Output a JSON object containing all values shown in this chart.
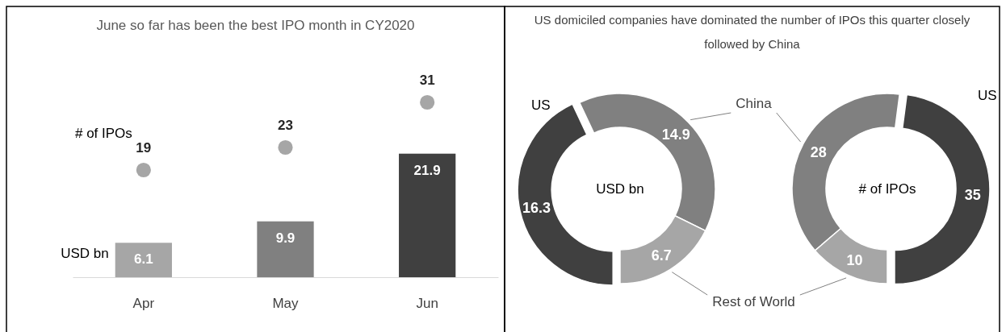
{
  "chart_data": [
    {
      "type": "bar",
      "title": "June so far has been the best IPO month in CY2020",
      "categories": [
        "Apr",
        "May",
        "Jun"
      ],
      "tick_labels": "x",
      "data_labels": true,
      "marker": "circle",
      "series": [
        {
          "name": "USD bn",
          "type": "bar",
          "values": [
            6.1,
            9.9,
            21.9
          ],
          "colors": [
            "#a6a6a6",
            "#808080",
            "#404040"
          ]
        },
        {
          "name": "# of IPOs",
          "type": "scatter",
          "values": [
            19,
            23,
            31
          ],
          "color": "#a6a6a6"
        }
      ]
    },
    {
      "type": "donut",
      "title": "US domiciled companies have dominated the number of IPOs this quarter closely followed by China",
      "categories": [
        "US",
        "China",
        "Rest of World"
      ],
      "colors": [
        "#404040",
        "#808080",
        "#a6a6a6"
      ],
      "data_labels": true,
      "series": [
        {
          "name": "USD bn",
          "values": [
            16.3,
            14.9,
            6.7
          ]
        },
        {
          "name": "# of IPOs",
          "values": [
            35,
            28,
            10
          ]
        }
      ]
    }
  ]
}
